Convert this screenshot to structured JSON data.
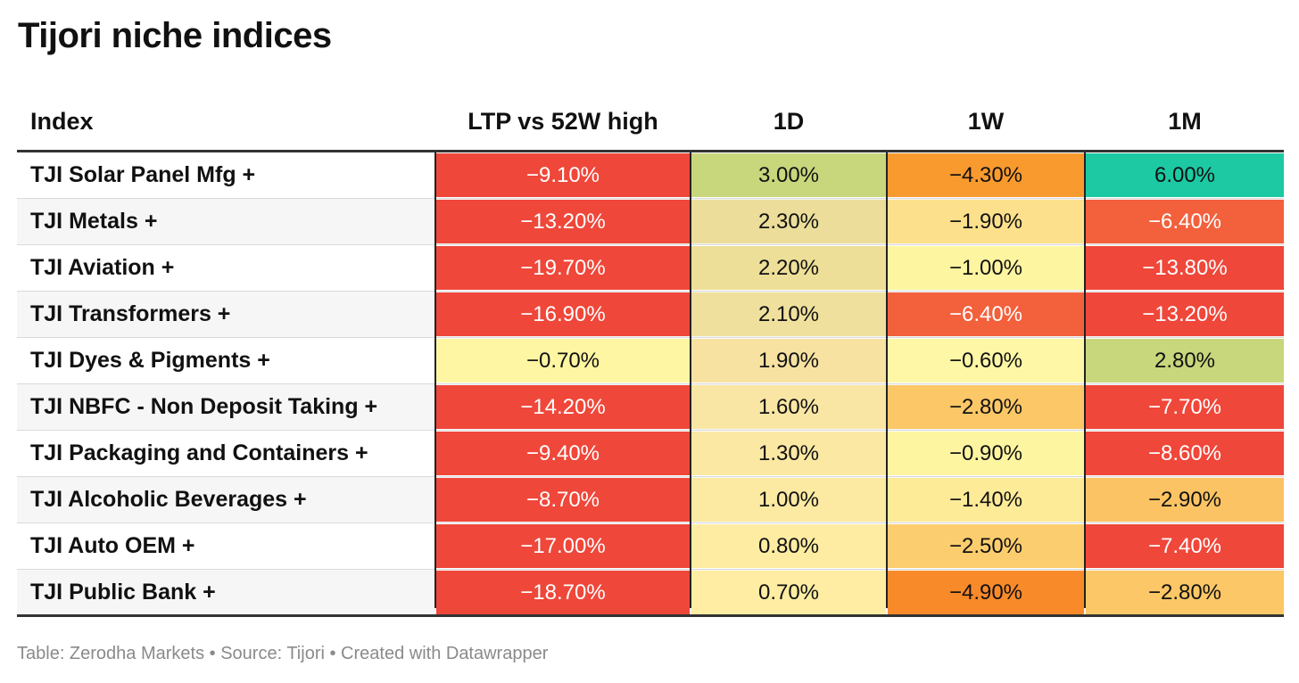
{
  "title": "Tijori niche indices",
  "footer": "Table: Zerodha Markets • Source: Tijori • Created with Datawrapper",
  "chart_data": {
    "type": "table",
    "columns": [
      "Index",
      "LTP vs 52W high",
      "1D",
      "1W",
      "1M"
    ],
    "rows": [
      {
        "name": "TJI Solar Panel Mfg +",
        "values": [
          "−9.10%",
          "3.00%",
          "−4.30%",
          "6.00%"
        ],
        "colors": [
          "#ef473a",
          "#c8d67c",
          "#f99a2e",
          "#1cc9a3"
        ]
      },
      {
        "name": "TJI Metals +",
        "values": [
          "−13.20%",
          "2.30%",
          "−1.90%",
          "−6.40%"
        ],
        "colors": [
          "#ef473a",
          "#ecde9a",
          "#fde08c",
          "#f3603c"
        ]
      },
      {
        "name": "TJI Aviation +",
        "values": [
          "−19.70%",
          "2.20%",
          "−1.00%",
          "−13.80%"
        ],
        "colors": [
          "#ef473a",
          "#eedf98",
          "#fef5a0",
          "#ef473a"
        ]
      },
      {
        "name": "TJI Transformers +",
        "values": [
          "−16.90%",
          "2.10%",
          "−6.40%",
          "−13.20%"
        ],
        "colors": [
          "#ef473a",
          "#f0e09e",
          "#f3603c",
          "#ef473a"
        ]
      },
      {
        "name": "TJI Dyes & Pigments +",
        "values": [
          "−0.70%",
          "1.90%",
          "−0.60%",
          "2.80%"
        ],
        "colors": [
          "#fef6a2",
          "#f7e2a2",
          "#fef7a6",
          "#c8d67c"
        ]
      },
      {
        "name": "TJI NBFC - Non Deposit Taking +",
        "values": [
          "−14.20%",
          "1.60%",
          "−2.80%",
          "−7.70%"
        ],
        "colors": [
          "#ef473a",
          "#fae6a4",
          "#fcc766",
          "#ef473a"
        ]
      },
      {
        "name": "TJI Packaging and Containers +",
        "values": [
          "−9.40%",
          "1.30%",
          "−0.90%",
          "−8.60%"
        ],
        "colors": [
          "#ef473a",
          "#fbe8a3",
          "#fef5a0",
          "#ef473a"
        ]
      },
      {
        "name": "TJI Alcoholic Beverages +",
        "values": [
          "−8.70%",
          "1.00%",
          "−1.40%",
          "−2.90%"
        ],
        "colors": [
          "#ef473a",
          "#fdeaa2",
          "#feeb98",
          "#fcc364"
        ]
      },
      {
        "name": "TJI Auto OEM +",
        "values": [
          "−17.00%",
          "0.80%",
          "−2.50%",
          "−7.40%"
        ],
        "colors": [
          "#ef473a",
          "#fdeca2",
          "#fccd6e",
          "#ef473a"
        ]
      },
      {
        "name": "TJI Public Bank +",
        "values": [
          "−18.70%",
          "0.70%",
          "−4.90%",
          "−2.80%"
        ],
        "colors": [
          "#ef473a",
          "#feeda2",
          "#f98a2a",
          "#fcc766"
        ]
      }
    ]
  }
}
